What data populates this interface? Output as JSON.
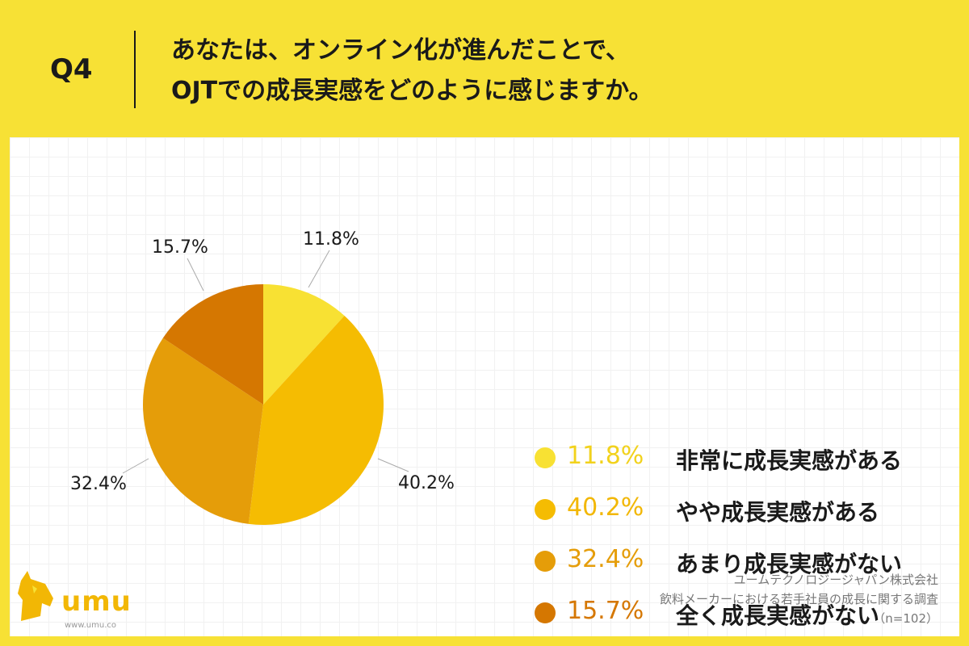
{
  "header": {
    "q_label": "Q4",
    "question_line1": "あなたは、オンライン化が進んだことで、",
    "question_line2": "OJTでの成長実感をどのように感じますか。"
  },
  "chart_data": {
    "type": "pie",
    "title": "",
    "categories": [
      "非常に成長実感がある",
      "やや成長実感がある",
      "あまり成長実感がない",
      "全く成長実感がない"
    ],
    "values": [
      11.8,
      40.2,
      32.4,
      15.7
    ],
    "labels": [
      "11.8%",
      "40.2%",
      "32.4%",
      "15.7%"
    ],
    "colors": [
      "#F8E133",
      "#F5BC02",
      "#E59D09",
      "#D57701"
    ],
    "start_angle": "12 o'clock, clockwise",
    "legend_position": "right"
  },
  "legend": [
    {
      "pct": "11.8%",
      "label": "非常に成長実感がある",
      "color": "#F8E133",
      "text_color": "#F2D21C"
    },
    {
      "pct": "40.2%",
      "label": "やや成長実感がある",
      "color": "#F5BC02",
      "text_color": "#F2B705"
    },
    {
      "pct": "32.4%",
      "label": "あまり成長実感がない",
      "color": "#E59D09",
      "text_color": "#E59D09"
    },
    {
      "pct": "15.7%",
      "label": "全く成長実感がない",
      "color": "#D57701",
      "text_color": "#D57701"
    }
  ],
  "logo": {
    "text": "umu",
    "url": "www.umu.co",
    "color": "#F2B705"
  },
  "source": {
    "line1": "ユームテクノロジージャパン株式会社",
    "line2": "飲料メーカーにおける若手社員の成長に関する調査",
    "line3": "（n=102）"
  }
}
